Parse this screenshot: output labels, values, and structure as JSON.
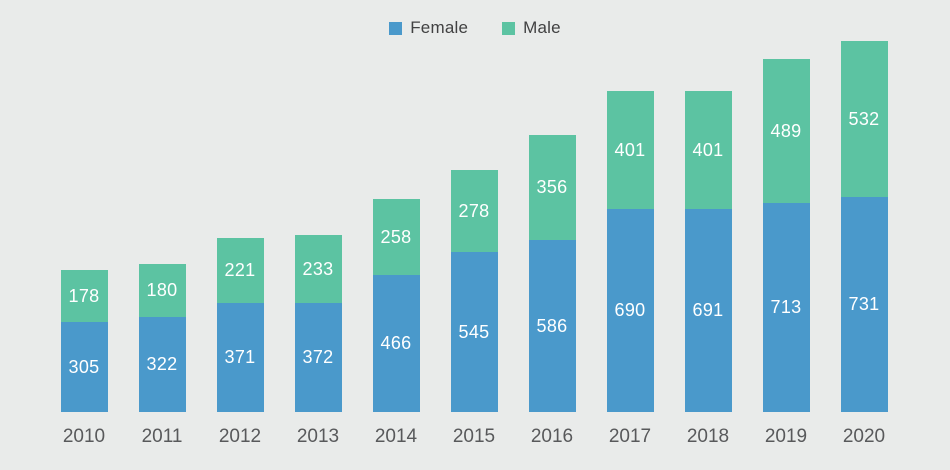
{
  "chart_data": {
    "type": "bar",
    "stacked": true,
    "title": "",
    "xlabel": "",
    "ylabel": "",
    "grid": false,
    "legend_position": "top-center",
    "background_color": "#E9EBEA",
    "value_label_color": "#FFFFFF",
    "axis_label_color": "#58595B",
    "categories": [
      "2010",
      "2011",
      "2012",
      "2013",
      "2014",
      "2015",
      "2016",
      "2017",
      "2018",
      "2019",
      "2020"
    ],
    "series": [
      {
        "name": "Female",
        "color": "#4A99CB",
        "values": [
          305,
          322,
          371,
          372,
          466,
          545,
          586,
          690,
          691,
          713,
          731
        ]
      },
      {
        "name": "Male",
        "color": "#5CC3A2",
        "values": [
          178,
          180,
          221,
          233,
          258,
          278,
          356,
          401,
          401,
          489,
          532
        ]
      }
    ]
  }
}
